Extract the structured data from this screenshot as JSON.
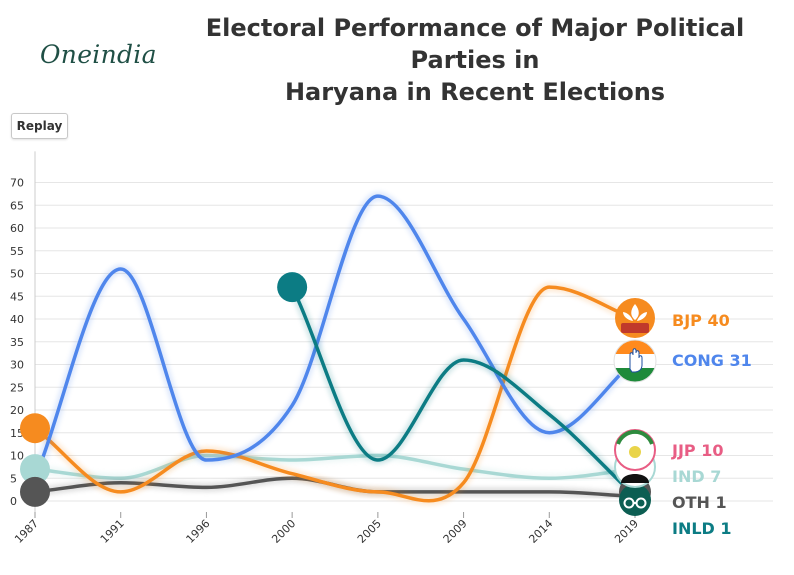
{
  "header": {
    "logo_text": "Oneindia",
    "title_line1": "Electoral Performance of Major Political Parties in",
    "title_line2": "Haryana in Recent Elections"
  },
  "controls": {
    "replay_label": "Replay"
  },
  "chart_data": {
    "type": "line",
    "x": [
      "1987",
      "1991",
      "1996",
      "2000",
      "2005",
      "2009",
      "2014",
      "2019"
    ],
    "ylim": [
      -2,
      72
    ],
    "yticks": [
      0,
      5,
      10,
      15,
      20,
      25,
      30,
      35,
      40,
      45,
      50,
      55,
      60,
      65,
      70
    ],
    "grid": true,
    "series": [
      {
        "id": "bjp",
        "name": "BJP",
        "color": "#f68b1f",
        "values": [
          16,
          2,
          11,
          6,
          2,
          4,
          47,
          40
        ],
        "end_label": "BJP 40",
        "icon": "lotus-icon"
      },
      {
        "id": "cong",
        "name": "CONG",
        "color": "#4f86ec",
        "values": [
          5,
          51,
          9,
          21,
          67,
          40,
          15,
          31
        ],
        "end_label": "CONG 31",
        "icon": "hand-icon"
      },
      {
        "id": "jjp",
        "name": "JJP",
        "color": "#e85d84",
        "values": [
          null,
          null,
          null,
          null,
          null,
          null,
          null,
          10
        ],
        "end_label": "JJP 10",
        "icon": "jjp-emblem-icon"
      },
      {
        "id": "ind",
        "name": "IND",
        "color": "#a8d8d4",
        "values": [
          7,
          5,
          10,
          9,
          10,
          7,
          5,
          7
        ],
        "end_label": "IND 7",
        "icon": "person-icon"
      },
      {
        "id": "oth",
        "name": "OTH",
        "color": "#555555",
        "values": [
          2,
          4,
          3,
          5,
          2,
          2,
          2,
          1
        ],
        "end_label": "OTH 1",
        "icon": "oth-circle-icon"
      },
      {
        "id": "inld",
        "name": "INLD",
        "color": "#0c7c84",
        "values": [
          null,
          null,
          null,
          47,
          9,
          31,
          19,
          1
        ],
        "end_label": "INLD 1",
        "icon": "spectacles-icon"
      }
    ]
  }
}
